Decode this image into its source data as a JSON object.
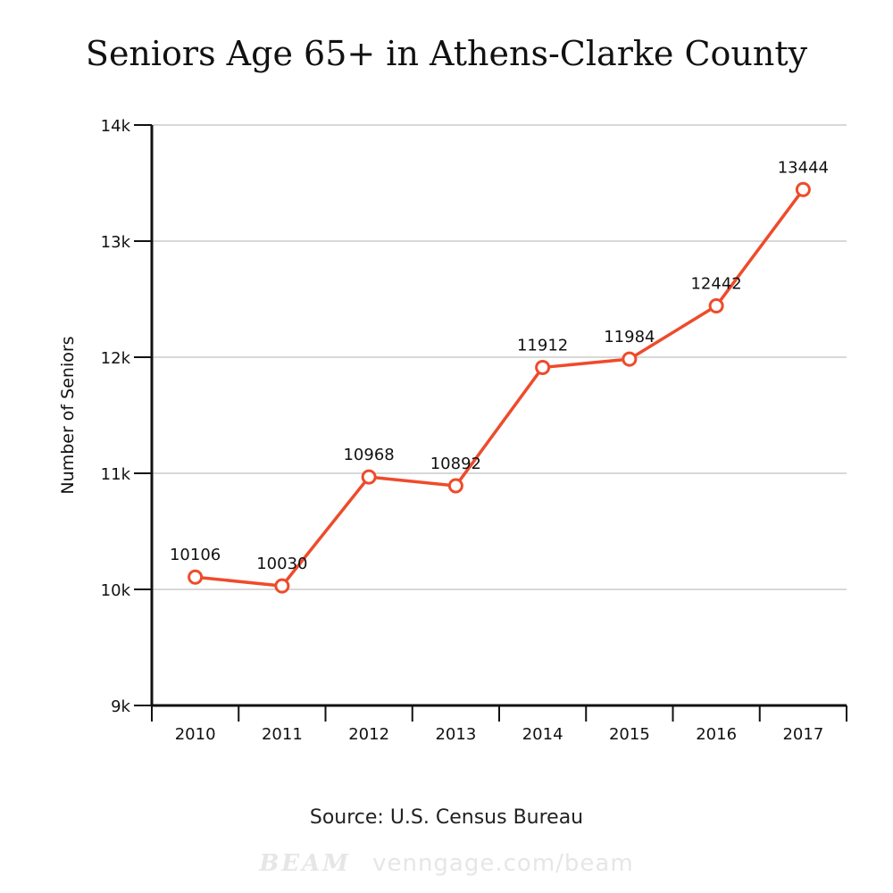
{
  "chart_data": {
    "type": "line",
    "title": "Seniors Age 65+ in Athens-Clarke County",
    "xlabel": "",
    "ylabel": "Number of Seniors",
    "categories": [
      "2010",
      "2011",
      "2012",
      "2013",
      "2014",
      "2015",
      "2016",
      "2017"
    ],
    "series": [
      {
        "values": [
          10106,
          10030,
          10968,
          10892,
          11912,
          11984,
          12442,
          13444
        ],
        "color": "#ee4b2b"
      }
    ],
    "ylim": [
      9000,
      14000
    ],
    "yticks": [
      9000,
      10000,
      11000,
      12000,
      13000,
      14000
    ],
    "ytick_labels": [
      "9k",
      "10k",
      "11k",
      "12k",
      "13k",
      "14k"
    ],
    "grid": true,
    "data_labels": true
  },
  "footer": {
    "source": "Source: U.S. Census Bureau",
    "brand": "BEAM",
    "url": "venngage.com/beam"
  }
}
